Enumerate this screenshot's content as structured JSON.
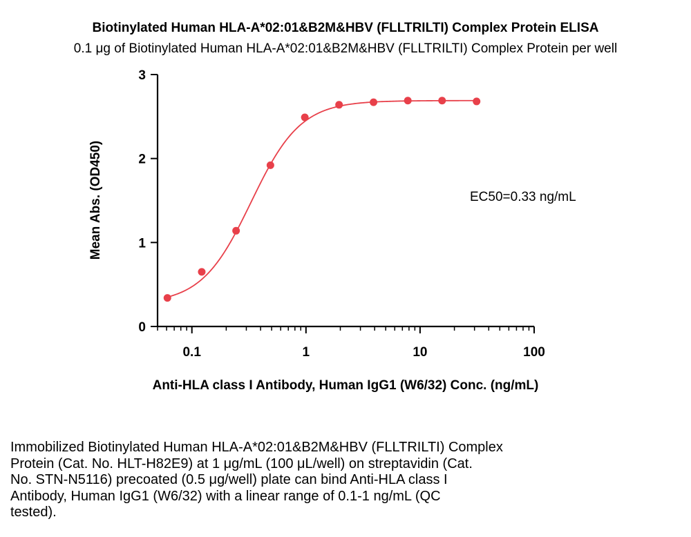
{
  "chart_data": {
    "type": "scatter",
    "title": "Biotinylated Human HLA-A*02:01&B2M&HBV (FLLTRILTI) Complex Protein ELISA",
    "subtitle": "0.1 μg of Biotinylated Human HLA-A*02:01&B2M&HBV (FLLTRILTI) Complex Protein per well",
    "xlabel": "Anti-HLA class I Antibody, Human IgG1 (W6/32) Conc. (ng/mL)",
    "ylabel": "Mean Abs. (OD450)",
    "x_scale": "log",
    "xlim": [
      0.05,
      100
    ],
    "ylim": [
      0,
      3
    ],
    "x_ticks": [
      {
        "value": 0.1,
        "label": "0.1"
      },
      {
        "value": 1,
        "label": "1"
      },
      {
        "value": 10,
        "label": "10"
      },
      {
        "value": 100,
        "label": "100"
      }
    ],
    "y_ticks": [
      {
        "value": 0,
        "label": "0"
      },
      {
        "value": 1,
        "label": "1"
      },
      {
        "value": 2,
        "label": "2"
      },
      {
        "value": 3,
        "label": "3"
      }
    ],
    "grid": false,
    "color": "#e8404a",
    "x": [
      0.061,
      0.122,
      0.244,
      0.488,
      0.977,
      1.95,
      3.91,
      7.81,
      15.6,
      31.3
    ],
    "y": [
      0.34,
      0.65,
      1.14,
      1.92,
      2.49,
      2.64,
      2.67,
      2.69,
      2.69,
      2.68
    ],
    "fit": {
      "bottom": 0.27,
      "top": 2.69,
      "ec50": 0.33,
      "hill": 2.0
    },
    "annotation": "EC50=0.33 ng/mL"
  },
  "caption": [
    "Immobilized Biotinylated Human HLA-A*02:01&B2M&HBV (FLLTRILTI) Complex",
    "Protein (Cat. No. HLT-H82E9) at 1 μg/mL (100 μL/well) on streptavidin (Cat.",
    "No. STN-N5116) precoated (0.5 μg/well) plate can bind Anti-HLA class I",
    "Antibody, Human IgG1 (W6/32) with a linear range of 0.1-1 ng/mL (QC",
    "tested)."
  ]
}
